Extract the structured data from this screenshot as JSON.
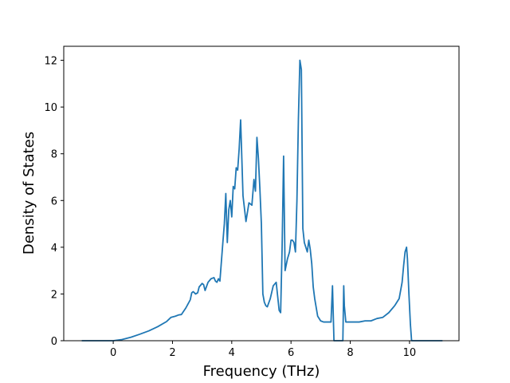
{
  "chart_data": {
    "type": "line",
    "title": "",
    "xlabel": "Frequency (THz)",
    "ylabel": "Density of States",
    "xlim": [
      -1.67,
      11.67
    ],
    "ylim": [
      0,
      12.6
    ],
    "x_ticks": [
      "0",
      "2",
      "4",
      "6",
      "8",
      "10"
    ],
    "y_ticks": [
      "0",
      "2",
      "4",
      "6",
      "8",
      "10",
      "12"
    ],
    "grid": false,
    "legend": "none",
    "series": [
      {
        "color": "#1f77b4",
        "x": [
          -1.05,
          -0.5,
          0.0,
          0.3,
          0.6,
          0.9,
          1.2,
          1.5,
          1.8,
          1.95,
          2.1,
          2.2,
          2.3,
          2.45,
          2.6,
          2.65,
          2.7,
          2.78,
          2.85,
          2.9,
          3.0,
          3.05,
          3.1,
          3.2,
          3.3,
          3.4,
          3.45,
          3.5,
          3.55,
          3.6,
          3.7,
          3.75,
          3.8,
          3.85,
          3.9,
          3.95,
          4.0,
          4.05,
          4.1,
          4.15,
          4.2,
          4.25,
          4.3,
          4.38,
          4.48,
          4.58,
          4.68,
          4.75,
          4.8,
          4.85,
          4.9,
          4.95,
          5.0,
          5.05,
          5.1,
          5.15,
          5.2,
          5.3,
          5.4,
          5.5,
          5.6,
          5.65,
          5.7,
          5.75,
          5.8,
          5.88,
          5.95,
          6.0,
          6.05,
          6.1,
          6.15,
          6.2,
          6.25,
          6.3,
          6.35,
          6.4,
          6.45,
          6.55,
          6.6,
          6.65,
          6.7,
          6.75,
          6.8,
          6.9,
          7.0,
          7.1,
          7.2,
          7.35,
          7.4,
          7.45,
          7.48,
          7.5,
          7.55,
          7.7,
          7.75,
          7.78,
          7.8,
          7.85,
          7.88,
          7.9,
          8.1,
          8.3,
          8.5,
          8.7,
          8.9,
          9.1,
          9.3,
          9.5,
          9.65,
          9.75,
          9.8,
          9.85,
          9.9,
          9.93,
          9.98,
          10.03,
          10.07,
          10.2,
          11.1
        ],
        "values": [
          0.0,
          0.0,
          0.0,
          0.05,
          0.15,
          0.28,
          0.42,
          0.6,
          0.82,
          1.0,
          1.05,
          1.1,
          1.12,
          1.4,
          1.75,
          2.05,
          2.1,
          2.0,
          2.05,
          2.3,
          2.45,
          2.4,
          2.15,
          2.5,
          2.65,
          2.7,
          2.55,
          2.5,
          2.65,
          2.55,
          4.2,
          5.0,
          6.3,
          4.2,
          5.6,
          6.0,
          5.3,
          6.6,
          6.5,
          7.4,
          7.3,
          8.2,
          9.45,
          6.2,
          5.1,
          5.9,
          5.8,
          6.9,
          6.4,
          8.7,
          7.8,
          6.5,
          5.0,
          2.0,
          1.65,
          1.5,
          1.45,
          1.8,
          2.35,
          2.5,
          1.3,
          1.2,
          4.0,
          7.9,
          3.0,
          3.5,
          3.8,
          4.3,
          4.3,
          4.2,
          3.8,
          6.0,
          9.5,
          12.0,
          11.6,
          4.8,
          4.2,
          3.8,
          4.3,
          3.9,
          3.3,
          2.3,
          1.8,
          1.05,
          0.85,
          0.8,
          0.8,
          0.8,
          2.35,
          0.0,
          0.0,
          0.0,
          0.0,
          0.0,
          0.0,
          2.35,
          1.5,
          0.8,
          0.8,
          0.8,
          0.8,
          0.8,
          0.85,
          0.85,
          0.95,
          1.0,
          1.2,
          1.5,
          1.8,
          2.5,
          3.2,
          3.8,
          4.0,
          3.5,
          2.0,
          0.7,
          0.0,
          0.0,
          0.0
        ]
      }
    ]
  }
}
